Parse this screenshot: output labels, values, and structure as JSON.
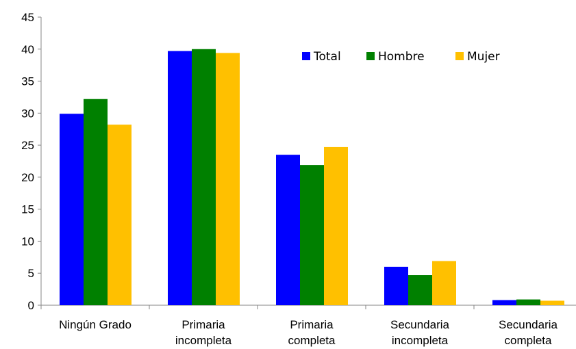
{
  "chart_data": {
    "type": "bar",
    "title": "",
    "xlabel": "",
    "ylabel": "",
    "categories": [
      [
        "Ningún Grado"
      ],
      [
        "Primaria",
        "incompleta"
      ],
      [
        "Primaria",
        "completa"
      ],
      [
        "Secundaria",
        "incompleta"
      ],
      [
        "Secundaria",
        "completa"
      ]
    ],
    "series": [
      {
        "name": "Total",
        "color": "#0000FF",
        "values": [
          29.9,
          39.7,
          23.5,
          6.0,
          0.8
        ]
      },
      {
        "name": "Hombre",
        "color": "#008000",
        "values": [
          32.2,
          40.0,
          21.9,
          4.7,
          0.9
        ]
      },
      {
        "name": "Mujer",
        "color": "#FFC000",
        "values": [
          28.2,
          39.4,
          24.7,
          6.9,
          0.7
        ]
      }
    ],
    "ylim": [
      0,
      45
    ],
    "yticks": [
      0,
      5,
      10,
      15,
      20,
      25,
      30,
      35,
      40,
      45
    ],
    "grid": false,
    "legend_position": "top-right"
  }
}
